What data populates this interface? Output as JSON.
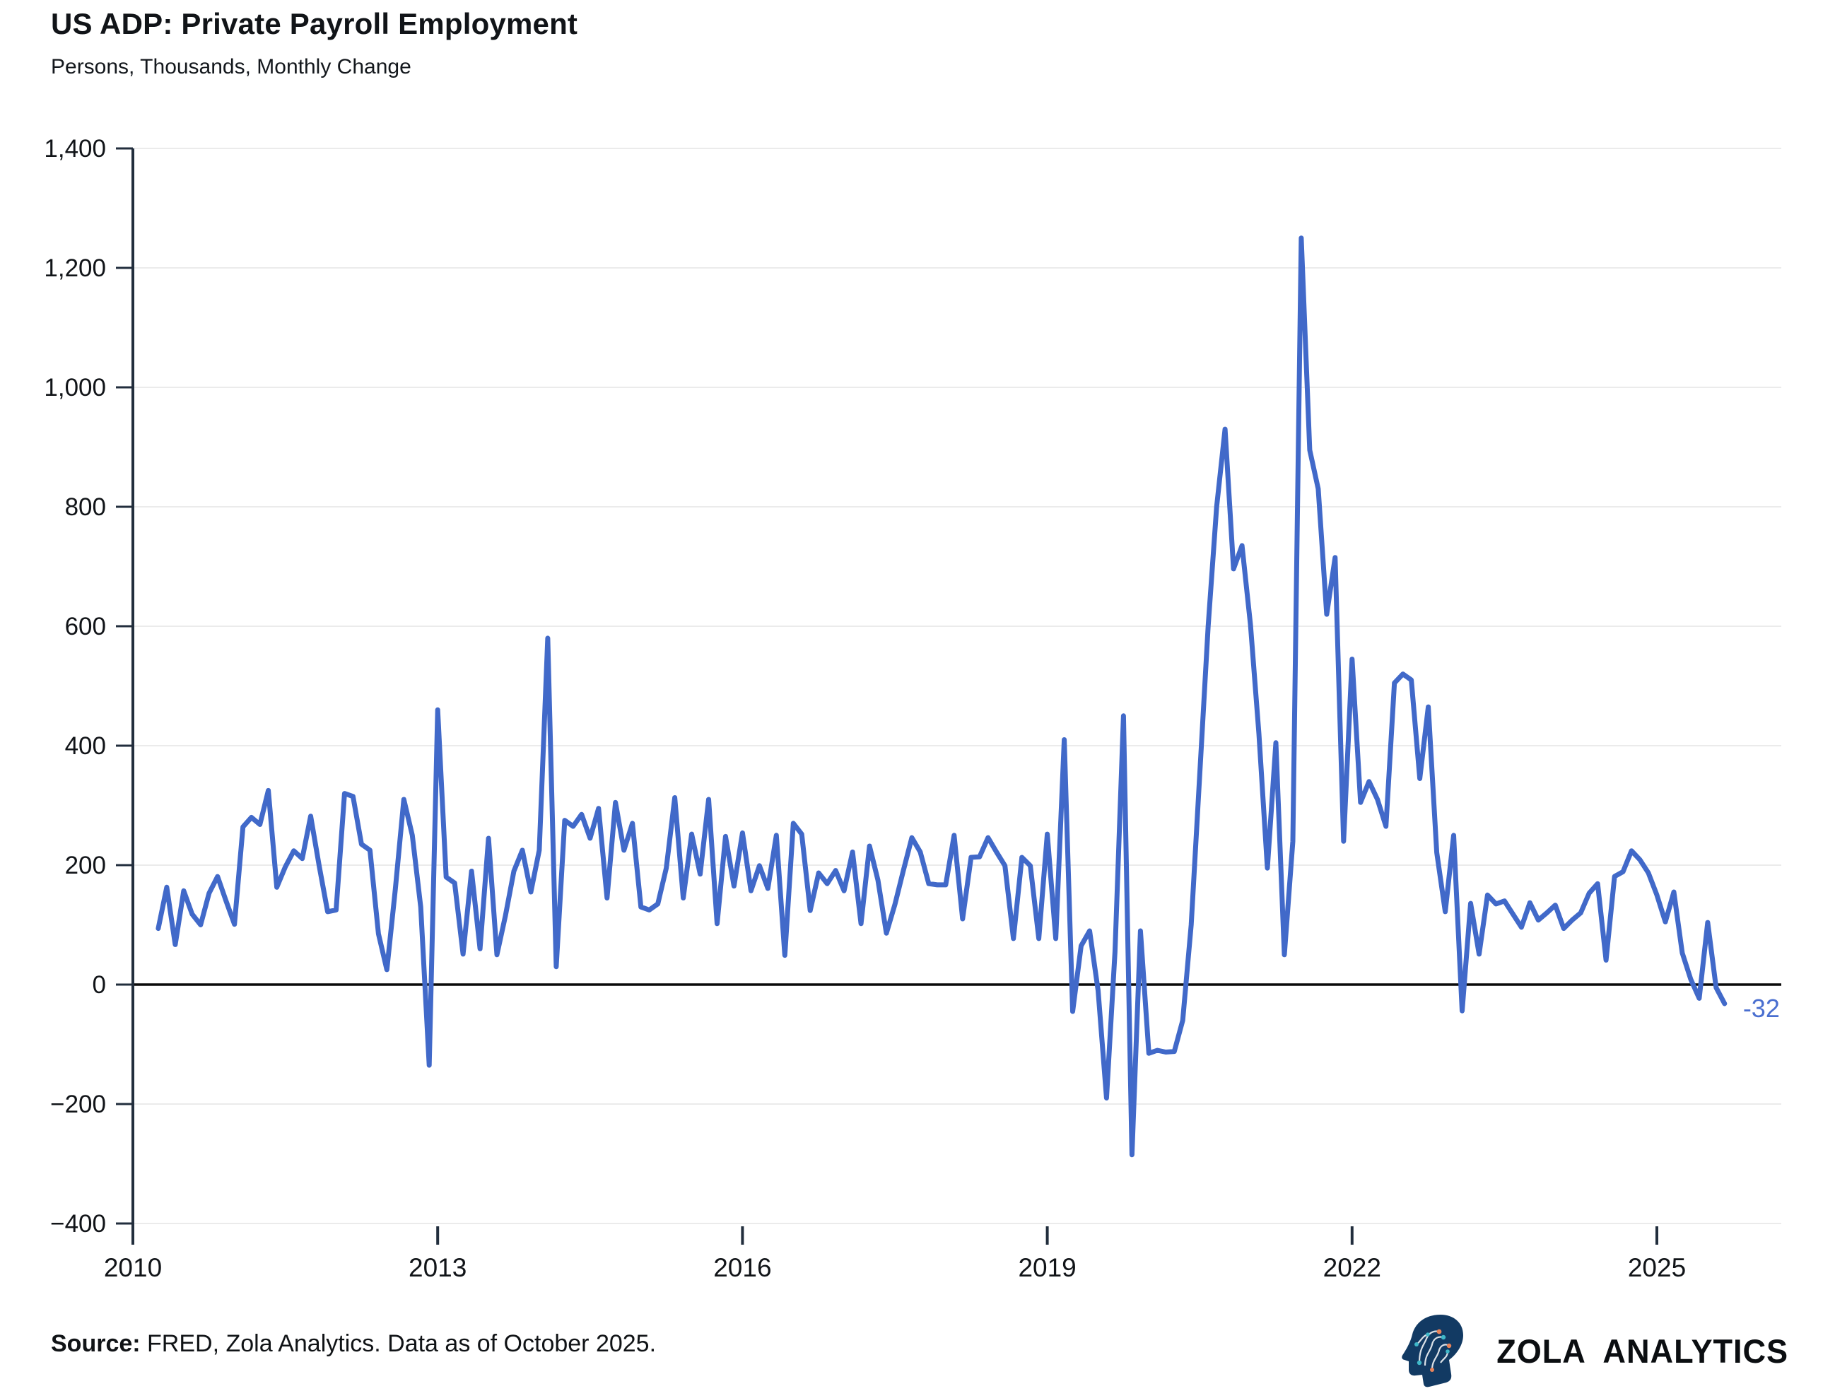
{
  "header": {
    "title": "US ADP: Private Payroll Employment",
    "subtitle": "Persons, Thousands, Monthly Change"
  },
  "footer": {
    "source_label": "Source:",
    "source_text": " FRED, Zola Analytics. Data as of October 2025.",
    "brand": "ZOLA ANALYTICS"
  },
  "chart_data": {
    "type": "line",
    "title": "US ADP: Private Payroll Employment",
    "subtitle": "Persons, Thousands, Monthly Change",
    "series": [
      {
        "name": "ADP private payroll employment, monthly change (thousands)",
        "start_month": "2010-04",
        "end_month": "2025-09",
        "frequency": "monthly",
        "values": [
          94,
          163,
          67,
          157,
          118,
          100,
          153,
          181,
          140,
          101,
          264,
          280,
          268,
          325,
          163,
          197,
          224,
          211,
          282,
          199,
          122,
          125,
          320,
          315,
          235,
          225,
          85,
          25,
          160,
          310,
          250,
          130,
          -135,
          460,
          180,
          170,
          51,
          190,
          60,
          245,
          50,
          115,
          190,
          225,
          155,
          225,
          580,
          30,
          275,
          265,
          285,
          245,
          295,
          145,
          305,
          225,
          270,
          130,
          125,
          135,
          195,
          313,
          145,
          252,
          185,
          310,
          102,
          248,
          165,
          254,
          157,
          199,
          161,
          250,
          49,
          270,
          252,
          124,
          187,
          169,
          191,
          157,
          222,
          102,
          232,
          175,
          86,
          134,
          191,
          246,
          222,
          169,
          167,
          167,
          250,
          110,
          213,
          214,
          246,
          222,
          199,
          77,
          213,
          199,
          77,
          252,
          77,
          410,
          -45,
          65,
          90,
          -10,
          -190,
          55,
          450,
          -285,
          90,
          -115,
          -110,
          -113,
          -112,
          -60,
          100,
          350,
          600,
          800,
          930,
          696,
          735,
          602,
          420,
          195,
          405,
          50,
          240,
          1250,
          895,
          830,
          620,
          715,
          240,
          545,
          305,
          340,
          310,
          265,
          505,
          520,
          510,
          345,
          465,
          221,
          122,
          250,
          -44,
          136,
          51,
          150,
          135,
          140,
          118,
          96,
          137,
          108,
          120,
          133,
          94,
          108,
          120,
          153,
          169,
          41,
          181,
          189,
          224,
          209,
          187,
          150,
          105,
          155,
          53,
          9,
          -23,
          104,
          -5,
          -32
        ]
      }
    ],
    "end_label": "-32",
    "last_value": -32,
    "line_color": "#4169c9",
    "xlabel": "",
    "ylabel": "Persons, Thousands, Monthly Change",
    "ylim": [
      -400,
      1400
    ],
    "y_ticks": [
      1400,
      1200,
      1000,
      800,
      600,
      400,
      200,
      0,
      -200,
      -400
    ],
    "y_tick_labels": [
      "1,400",
      "1,200",
      "1,000",
      "800",
      "600",
      "400",
      "200",
      "0",
      "−200",
      "−400"
    ],
    "x_ticks": [
      2010,
      2013,
      2016,
      2019,
      2022,
      2025
    ],
    "x_tick_labels": [
      "2010",
      "2013",
      "2016",
      "2019",
      "2022",
      "2025"
    ],
    "grid": "horizontal gridlines on, zero line emphasized black",
    "legend_position": "none"
  },
  "colors": {
    "line": "#4169c9",
    "end_label": "#4a6fd0",
    "grid": "#ebebeb",
    "zero_line": "#0a0a0a",
    "axis": "#222e3d",
    "tick_label": "#111418",
    "logo_navy": "#123a63",
    "logo_teal": "#3fb8c9",
    "logo_orange": "#e8835a"
  }
}
